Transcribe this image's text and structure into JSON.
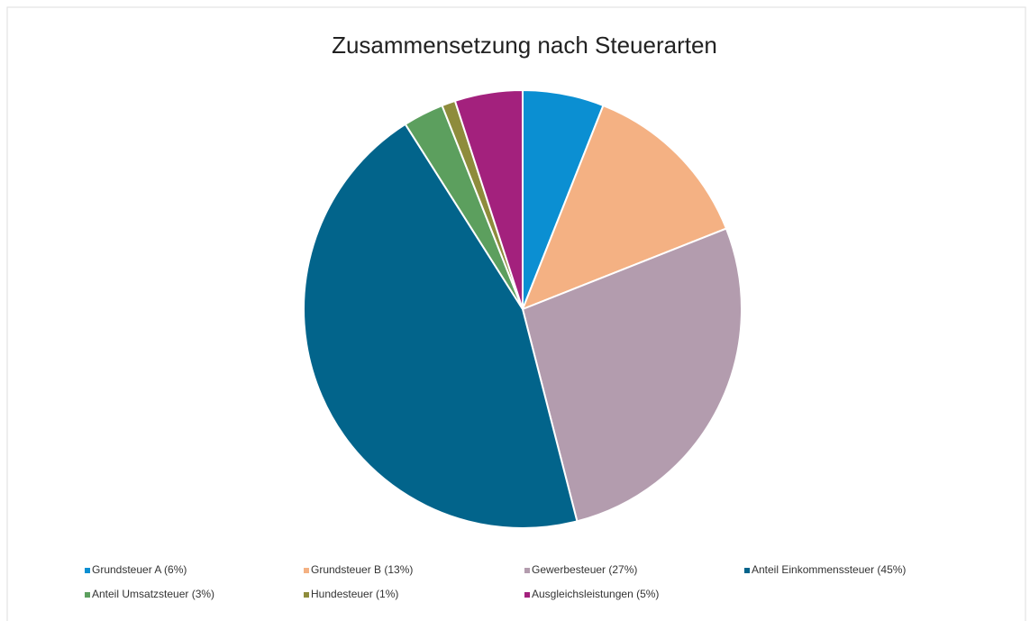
{
  "chart_data": {
    "type": "pie",
    "title": "Zusammensetzung nach Steuerarten",
    "categories": [
      "Grundsteuer A (6%)",
      "Grundsteuer B (13%)",
      "Gewerbesteuer (27%)",
      "Anteil Einkommenssteuer (45%)",
      "Anteil Umsatzsteuer (3%)",
      "Hundesteuer (1%)",
      "Ausgleichsleistungen (5%)"
    ],
    "values": [
      6,
      13,
      27,
      45,
      3,
      1,
      5
    ],
    "colors": [
      "#0b8fd2",
      "#f4b183",
      "#b39cae",
      "#02648b",
      "#5c9f5e",
      "#8e8c3c",
      "#a3217d"
    ],
    "legend": "bottom"
  }
}
